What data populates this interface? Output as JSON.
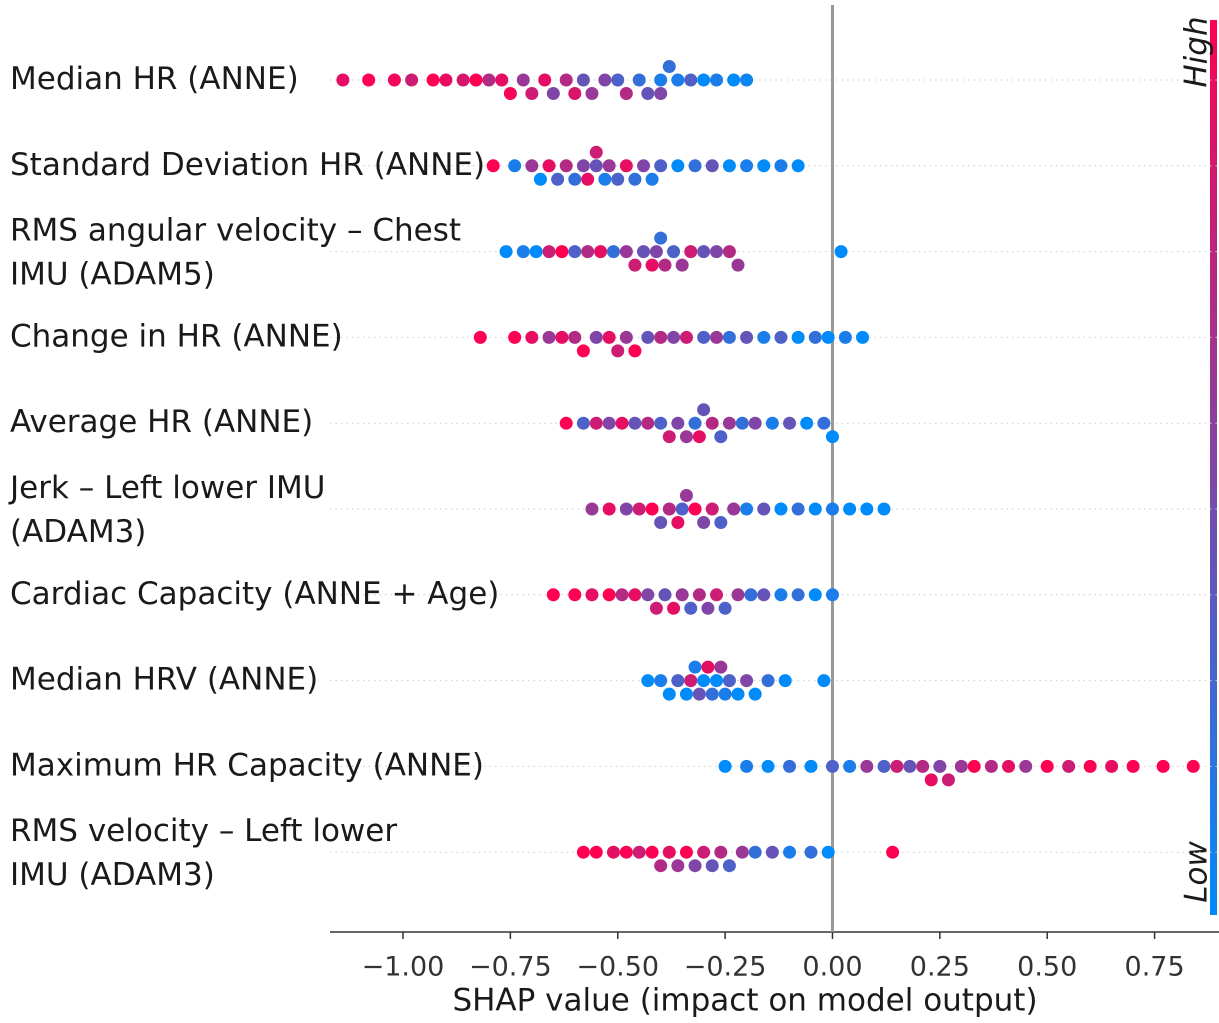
{
  "chart_data": {
    "type": "beeswarm",
    "xlabel": "SHAP value (impact on model output)",
    "xlim": [
      -1.17,
      0.9
    ],
    "xticks": [
      {
        "value": -1,
        "label": "−1.00"
      },
      {
        "value": -0.75,
        "label": "−0.75"
      },
      {
        "value": -0.5,
        "label": "−0.50"
      },
      {
        "value": -0.25,
        "label": "−0.25"
      },
      {
        "value": 0,
        "label": "0.00"
      },
      {
        "value": 0.25,
        "label": "0.25"
      },
      {
        "value": 0.5,
        "label": "0.50"
      },
      {
        "value": 0.75,
        "label": "0.75"
      }
    ],
    "colorbar": {
      "high": "High",
      "low": "Low",
      "high_color": "#ff0052",
      "low_color": "#008bfb"
    },
    "series": [
      {
        "name": "Median HR (ANNE)",
        "points": [
          [
            -1.14,
            0.9
          ],
          [
            -1.08,
            1
          ],
          [
            -1.02,
            0.95
          ],
          [
            -0.98,
            0.8
          ],
          [
            -0.93,
            1
          ],
          [
            -0.9,
            0.9
          ],
          [
            -0.86,
            0.85
          ],
          [
            -0.83,
            1
          ],
          [
            -0.8,
            0.7
          ],
          [
            -0.77,
            0.9
          ],
          [
            -0.75,
            0.95
          ],
          [
            -0.72,
            0.6
          ],
          [
            -0.7,
            0.8
          ],
          [
            -0.67,
            0.9
          ],
          [
            -0.65,
            0.5
          ],
          [
            -0.62,
            0.7
          ],
          [
            -0.6,
            0.85
          ],
          [
            -0.58,
            0.4
          ],
          [
            -0.56,
            0.6
          ],
          [
            -0.53,
            0.5
          ],
          [
            -0.5,
            0.3
          ],
          [
            -0.48,
            0.7
          ],
          [
            -0.45,
            0.2
          ],
          [
            -0.43,
            0.4
          ],
          [
            -0.4,
            0.1
          ],
          [
            -0.4,
            0.5
          ],
          [
            -0.38,
            0.2
          ],
          [
            -0.36,
            0.1
          ],
          [
            -0.33,
            0.3
          ],
          [
            -0.3,
            0
          ],
          [
            -0.27,
            0.1
          ],
          [
            -0.23,
            0
          ],
          [
            -0.2,
            0.05
          ]
        ]
      },
      {
        "name": "Standard Deviation HR (ANNE)",
        "points": [
          [
            -0.79,
            1
          ],
          [
            -0.74,
            0.1
          ],
          [
            -0.7,
            0.6
          ],
          [
            -0.68,
            0
          ],
          [
            -0.66,
            0.9
          ],
          [
            -0.64,
            0.3
          ],
          [
            -0.62,
            0.7
          ],
          [
            -0.6,
            0.2
          ],
          [
            -0.58,
            0.5
          ],
          [
            -0.57,
            0.9
          ],
          [
            -0.55,
            0.4
          ],
          [
            -0.55,
            0.8
          ],
          [
            -0.53,
            0.1
          ],
          [
            -0.52,
            0.6
          ],
          [
            -0.5,
            0.3
          ],
          [
            -0.48,
            0.9
          ],
          [
            -0.46,
            0.2
          ],
          [
            -0.44,
            0.5
          ],
          [
            -0.42,
            0.1
          ],
          [
            -0.4,
            0.3
          ],
          [
            -0.36,
            0
          ],
          [
            -0.32,
            0.2
          ],
          [
            -0.28,
            0.4
          ],
          [
            -0.24,
            0
          ],
          [
            -0.2,
            0.1
          ],
          [
            -0.16,
            0
          ],
          [
            -0.12,
            0.1
          ],
          [
            -0.08,
            0
          ]
        ]
      },
      {
        "name": "RMS angular velocity – Chest\nIMU (ADAM5)",
        "points": [
          [
            -0.76,
            0
          ],
          [
            -0.72,
            0.1
          ],
          [
            -0.69,
            0
          ],
          [
            -0.66,
            0.8
          ],
          [
            -0.63,
            1
          ],
          [
            -0.6,
            0.3
          ],
          [
            -0.57,
            0.7
          ],
          [
            -0.54,
            0.9
          ],
          [
            -0.51,
            0.2
          ],
          [
            -0.48,
            0.6
          ],
          [
            -0.46,
            0.8
          ],
          [
            -0.44,
            0.4
          ],
          [
            -0.42,
            0.9
          ],
          [
            -0.41,
            0.5
          ],
          [
            -0.4,
            0.2
          ],
          [
            -0.39,
            0.7
          ],
          [
            -0.37,
            0.3
          ],
          [
            -0.35,
            0.6
          ],
          [
            -0.33,
            0.8
          ],
          [
            -0.3,
            0.4
          ],
          [
            -0.27,
            0.5
          ],
          [
            -0.24,
            0.7
          ],
          [
            -0.22,
            0.6
          ],
          [
            0.02,
            0
          ]
        ]
      },
      {
        "name": "Change in HR (ANNE)",
        "points": [
          [
            -0.82,
            1
          ],
          [
            -0.74,
            1
          ],
          [
            -0.7,
            0.9
          ],
          [
            -0.66,
            0.6
          ],
          [
            -0.63,
            0.9
          ],
          [
            -0.6,
            0.7
          ],
          [
            -0.58,
            1
          ],
          [
            -0.55,
            0.5
          ],
          [
            -0.52,
            0.9
          ],
          [
            -0.5,
            0.8
          ],
          [
            -0.48,
            0.6
          ],
          [
            -0.46,
            1
          ],
          [
            -0.43,
            0.4
          ],
          [
            -0.4,
            0.7
          ],
          [
            -0.37,
            0.5
          ],
          [
            -0.34,
            0.8
          ],
          [
            -0.3,
            0.3
          ],
          [
            -0.27,
            0.6
          ],
          [
            -0.24,
            0.2
          ],
          [
            -0.2,
            0.4
          ],
          [
            -0.16,
            0.1
          ],
          [
            -0.12,
            0.3
          ],
          [
            -0.08,
            0
          ],
          [
            -0.04,
            0.2
          ],
          [
            -0.01,
            0
          ],
          [
            0.03,
            0.1
          ],
          [
            0.07,
            0
          ]
        ]
      },
      {
        "name": "Average HR (ANNE)",
        "points": [
          [
            -0.62,
            1
          ],
          [
            -0.58,
            0.3
          ],
          [
            -0.55,
            0.8
          ],
          [
            -0.52,
            0.5
          ],
          [
            -0.49,
            0.9
          ],
          [
            -0.46,
            0.4
          ],
          [
            -0.43,
            0.7
          ],
          [
            -0.4,
            0.3
          ],
          [
            -0.38,
            0.8
          ],
          [
            -0.36,
            0.5
          ],
          [
            -0.34,
            0.6
          ],
          [
            -0.32,
            0.2
          ],
          [
            -0.31,
            0.9
          ],
          [
            -0.3,
            0.4
          ],
          [
            -0.28,
            0.7
          ],
          [
            -0.26,
            0.3
          ],
          [
            -0.24,
            0.6
          ],
          [
            -0.21,
            0.2
          ],
          [
            -0.18,
            0.5
          ],
          [
            -0.14,
            0.1
          ],
          [
            -0.1,
            0.4
          ],
          [
            -0.06,
            0
          ],
          [
            -0.02,
            0.2
          ],
          [
            0,
            0
          ]
        ]
      },
      {
        "name": "Jerk – Left lower IMU\n(ADAM3)",
        "points": [
          [
            -0.56,
            0.6
          ],
          [
            -0.52,
            0.9
          ],
          [
            -0.48,
            0.5
          ],
          [
            -0.45,
            0.8
          ],
          [
            -0.42,
            1
          ],
          [
            -0.4,
            0.4
          ],
          [
            -0.38,
            0.7
          ],
          [
            -0.36,
            0.9
          ],
          [
            -0.35,
            0.3
          ],
          [
            -0.34,
            0.6
          ],
          [
            -0.32,
            1
          ],
          [
            -0.3,
            0.5
          ],
          [
            -0.28,
            0.8
          ],
          [
            -0.26,
            0.3
          ],
          [
            -0.23,
            0.6
          ],
          [
            -0.2,
            0.1
          ],
          [
            -0.16,
            0.4
          ],
          [
            -0.12,
            0
          ],
          [
            -0.08,
            0.2
          ],
          [
            -0.04,
            0
          ],
          [
            0,
            0.1
          ],
          [
            0.04,
            0
          ],
          [
            0.08,
            0
          ],
          [
            0.12,
            0
          ]
        ]
      },
      {
        "name": "Cardiac Capacity (ANNE + Age)",
        "points": [
          [
            -0.65,
            1
          ],
          [
            -0.6,
            1
          ],
          [
            -0.56,
            0.9
          ],
          [
            -0.52,
            1
          ],
          [
            -0.49,
            0.7
          ],
          [
            -0.46,
            0.9
          ],
          [
            -0.43,
            0.5
          ],
          [
            -0.41,
            0.8
          ],
          [
            -0.39,
            0.4
          ],
          [
            -0.37,
            0.9
          ],
          [
            -0.35,
            0.6
          ],
          [
            -0.33,
            0.3
          ],
          [
            -0.31,
            0.7
          ],
          [
            -0.29,
            0.5
          ],
          [
            -0.27,
            0.8
          ],
          [
            -0.25,
            0.3
          ],
          [
            -0.22,
            0.6
          ],
          [
            -0.19,
            0.2
          ],
          [
            -0.16,
            0.4
          ],
          [
            -0.12,
            0.1
          ],
          [
            -0.08,
            0.2
          ],
          [
            -0.04,
            0
          ],
          [
            0,
            0.1
          ]
        ]
      },
      {
        "name": "Median HRV (ANNE)",
        "points": [
          [
            -0.43,
            0
          ],
          [
            -0.4,
            0.1
          ],
          [
            -0.38,
            0
          ],
          [
            -0.36,
            0.3
          ],
          [
            -0.34,
            0
          ],
          [
            -0.33,
            0.8
          ],
          [
            -0.32,
            0.1
          ],
          [
            -0.31,
            0.4
          ],
          [
            -0.3,
            0
          ],
          [
            -0.29,
            0.9
          ],
          [
            -0.28,
            0.2
          ],
          [
            -0.27,
            0
          ],
          [
            -0.26,
            0.6
          ],
          [
            -0.25,
            0.1
          ],
          [
            -0.24,
            0.3
          ],
          [
            -0.22,
            0
          ],
          [
            -0.2,
            0.5
          ],
          [
            -0.18,
            0
          ],
          [
            -0.15,
            0.2
          ],
          [
            -0.11,
            0
          ],
          [
            -0.02,
            0
          ]
        ]
      },
      {
        "name": "Maximum HR Capacity (ANNE)",
        "points": [
          [
            -0.25,
            0
          ],
          [
            -0.2,
            0.1
          ],
          [
            -0.15,
            0
          ],
          [
            -0.1,
            0.2
          ],
          [
            -0.05,
            0
          ],
          [
            0,
            0.3
          ],
          [
            0.04,
            0.1
          ],
          [
            0.08,
            0.6
          ],
          [
            0.12,
            0.3
          ],
          [
            0.15,
            0.8
          ],
          [
            0.18,
            0.4
          ],
          [
            0.21,
            0.7
          ],
          [
            0.23,
            0.9
          ],
          [
            0.25,
            0.5
          ],
          [
            0.27,
            0.8
          ],
          [
            0.3,
            0.6
          ],
          [
            0.33,
            1
          ],
          [
            0.37,
            0.7
          ],
          [
            0.41,
            0.9
          ],
          [
            0.45,
            0.6
          ],
          [
            0.5,
            1
          ],
          [
            0.55,
            0.8
          ],
          [
            0.6,
            1
          ],
          [
            0.65,
            0.9
          ],
          [
            0.7,
            1
          ],
          [
            0.77,
            1
          ],
          [
            0.84,
            1
          ]
        ]
      },
      {
        "name": "RMS velocity – Left lower\nIMU (ADAM3)",
        "points": [
          [
            -0.58,
            1
          ],
          [
            -0.55,
            1
          ],
          [
            -0.51,
            0.9
          ],
          [
            -0.48,
            1
          ],
          [
            -0.45,
            0.8
          ],
          [
            -0.42,
            1
          ],
          [
            -0.4,
            0.7
          ],
          [
            -0.38,
            0.9
          ],
          [
            -0.36,
            0.6
          ],
          [
            -0.34,
            1
          ],
          [
            -0.32,
            0.5
          ],
          [
            -0.3,
            0.8
          ],
          [
            -0.28,
            0.4
          ],
          [
            -0.26,
            0.7
          ],
          [
            -0.24,
            0.3
          ],
          [
            -0.21,
            0.6
          ],
          [
            -0.18,
            0.2
          ],
          [
            -0.14,
            0.4
          ],
          [
            -0.1,
            0.1
          ],
          [
            -0.05,
            0.2
          ],
          [
            -0.01,
            0
          ],
          [
            0.14,
            1
          ]
        ]
      }
    ]
  }
}
